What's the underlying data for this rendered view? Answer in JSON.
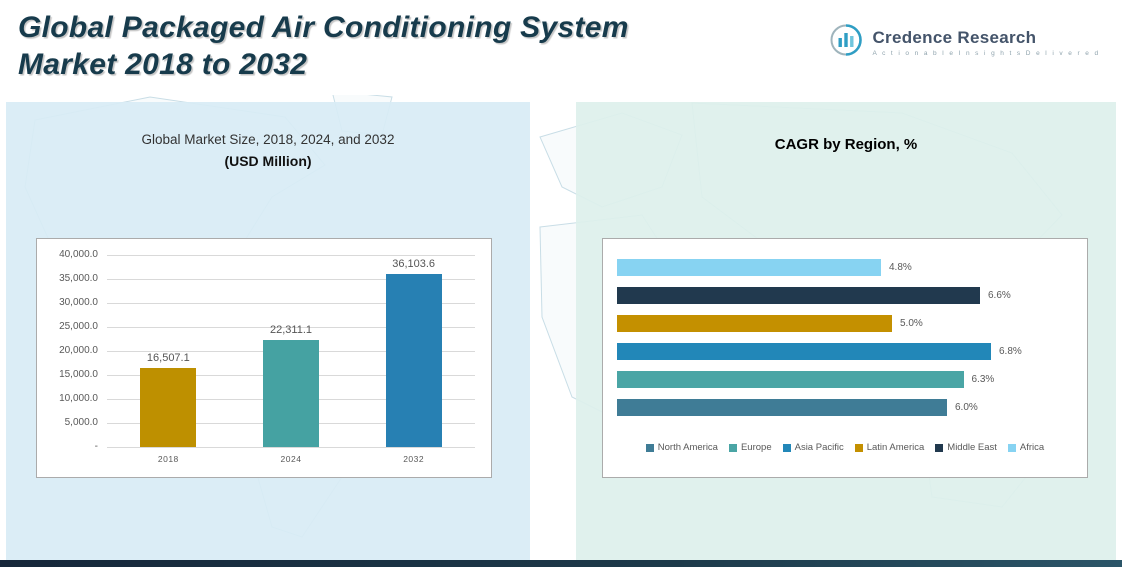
{
  "page": {
    "title_line1": "Global Packaged Air Conditioning System",
    "title_line2": "Market 2018 to 2032"
  },
  "logo": {
    "name": "Credence Research",
    "tagline": "A c t i o n a b l e   I n s i g h t s   D e l i v e r e d"
  },
  "left_chart": {
    "title": "Global Market Size, 2018, 2024, and 2032",
    "subtitle": "(USD Million)"
  },
  "right_chart": {
    "title": "CAGR by Region, %"
  },
  "chart_data": [
    {
      "type": "bar",
      "title": "Global Market Size, 2018, 2024, and 2032 (USD Million)",
      "categories": [
        "2018",
        "2024",
        "2032"
      ],
      "values": [
        16507.1,
        22311.1,
        36103.6
      ],
      "value_labels": [
        "16,507.1",
        "22,311.1",
        "36,103.6"
      ],
      "bar_colors": [
        "#BE9000",
        "#45A2A2",
        "#2780B3"
      ],
      "ylim": [
        0,
        40000
      ],
      "ytick_labels": [
        "40,000.0",
        "35,000.0",
        "30,000.0",
        "25,000.0",
        "20,000.0",
        "15,000.0",
        "10,000.0",
        "5,000.0",
        "-"
      ],
      "grid": true,
      "legend_position": "none"
    },
    {
      "type": "bar",
      "orientation": "horizontal",
      "title": "CAGR by Region, %",
      "categories": [
        "Africa",
        "Middle East",
        "Latin America",
        "Asia Pacific",
        "Europe",
        "North America"
      ],
      "values": [
        4.8,
        6.6,
        5.0,
        6.8,
        6.3,
        6.0
      ],
      "value_labels": [
        "4.8%",
        "6.6%",
        "5.0%",
        "6.8%",
        "6.3%",
        "6.0%"
      ],
      "bar_colors": [
        "#87D3F2",
        "#21394E",
        "#C49000",
        "#2287B8",
        "#4AA5A5",
        "#3F7C96"
      ],
      "xlim": [
        0,
        7.5
      ],
      "grid": false,
      "legend_position": "bottom",
      "legend": [
        "North America",
        "Europe",
        "Asia Pacific",
        "Latin America",
        "Middle East",
        "Africa"
      ],
      "legend_colors": [
        "#3F7C96",
        "#4AA5A5",
        "#2287B8",
        "#C49000",
        "#21394E",
        "#87D3F2"
      ]
    }
  ]
}
